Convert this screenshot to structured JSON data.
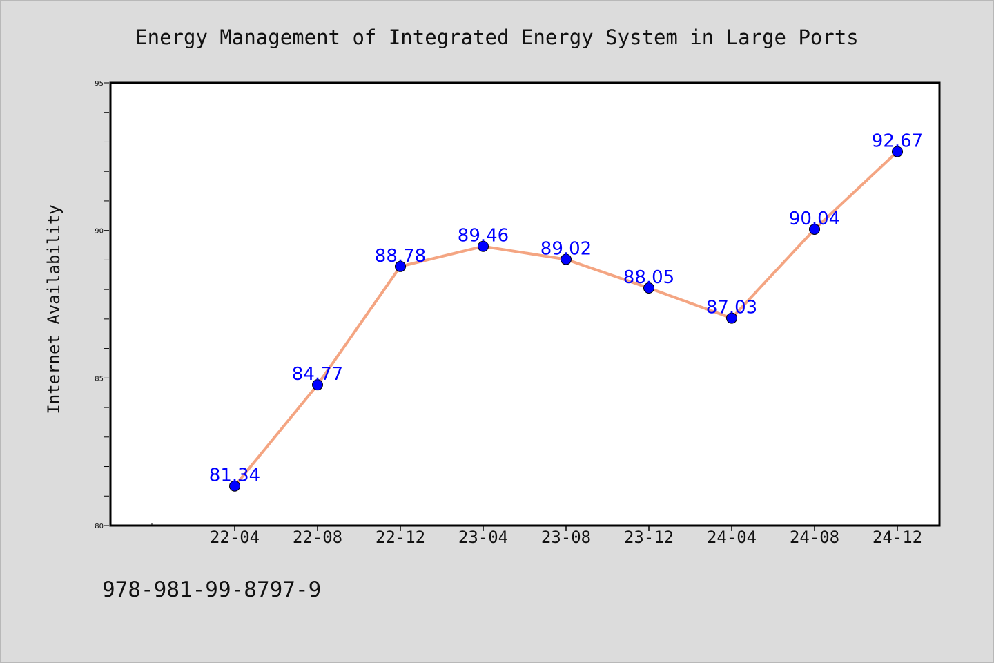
{
  "chart_data": {
    "type": "line",
    "title": "Energy Management of Integrated Energy System in Large Ports",
    "xlabel": "",
    "ylabel": "Internet Availability",
    "categories": [
      "22-04",
      "22-08",
      "22-12",
      "23-04",
      "23-08",
      "23-12",
      "24-04",
      "24-08",
      "24-12"
    ],
    "series": [
      {
        "values": [
          81.34,
          84.77,
          88.78,
          89.46,
          89.02,
          88.05,
          87.03,
          90.04,
          92.67
        ],
        "line_color": "#f4a582",
        "marker_color": "#0000ff"
      }
    ],
    "data_labels": [
      "81.34",
      "84.77",
      "88.78",
      "89.46",
      "89.02",
      "88.05",
      "87.03",
      "90.04",
      "92.67"
    ],
    "label_color": "#0000ff",
    "ylim": [
      80,
      95
    ],
    "yticks": [
      "80",
      "85",
      "90",
      "95"
    ],
    "grid": false,
    "legend": "none"
  },
  "footer": {
    "isbn": "978-981-99-8797-9"
  }
}
